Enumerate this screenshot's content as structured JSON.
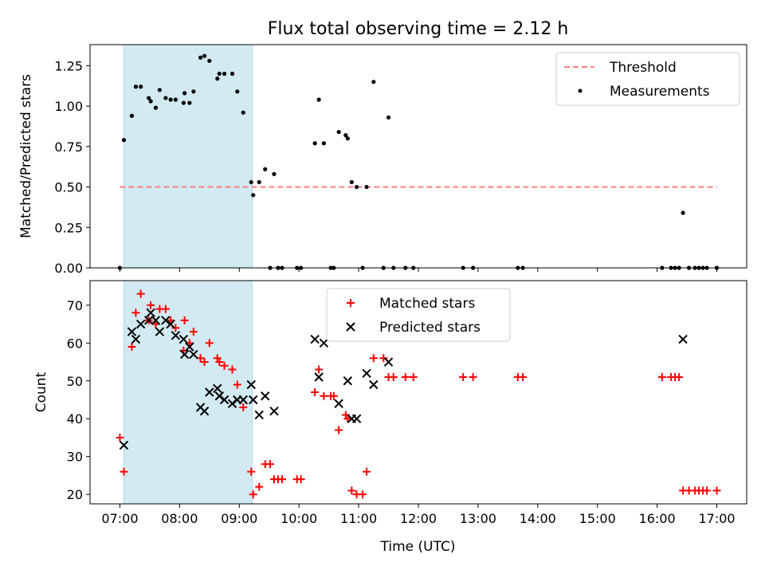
{
  "title": "Flux total observing time = 2.12 h",
  "colors": {
    "threshold": "#ff7f7f",
    "measurement": "#000000",
    "matched": "#ff0000",
    "predicted": "#000000",
    "shade": "#add8e6"
  },
  "chart_data": [
    {
      "type": "scatter",
      "ylabel": "Matched/Predicted stars",
      "xlim": [
        "06:30",
        "17:30"
      ],
      "ylim": [
        0,
        1.38
      ],
      "y_ticks": [
        0.0,
        0.25,
        0.5,
        0.75,
        1.0,
        1.25
      ],
      "y_tick_labels": [
        "0.00",
        "0.25",
        "0.50",
        "0.75",
        "1.00",
        "1.25"
      ],
      "legend_position": "upper right",
      "shaded_interval": [
        "07:04",
        "09:13"
      ],
      "threshold": {
        "name": "Threshold",
        "value": 0.5,
        "x_range": [
          "07:00",
          "17:00"
        ],
        "style": "dashed"
      },
      "series": [
        {
          "name": "Measurements",
          "marker": "dot",
          "points": [
            [
              "07:00",
              0.0
            ],
            [
              "07:04",
              0.79
            ],
            [
              "07:12",
              0.94
            ],
            [
              "07:16",
              1.12
            ],
            [
              "07:21",
              1.12
            ],
            [
              "07:29",
              1.05
            ],
            [
              "07:31",
              1.03
            ],
            [
              "07:36",
              0.99
            ],
            [
              "07:40",
              1.1
            ],
            [
              "07:46",
              1.05
            ],
            [
              "07:51",
              1.04
            ],
            [
              "07:56",
              1.04
            ],
            [
              "08:04",
              1.02
            ],
            [
              "08:05",
              1.08
            ],
            [
              "08:10",
              1.02
            ],
            [
              "08:14",
              1.09
            ],
            [
              "08:21",
              1.3
            ],
            [
              "08:25",
              1.31
            ],
            [
              "08:30",
              1.28
            ],
            [
              "08:38",
              1.17
            ],
            [
              "08:40",
              1.2
            ],
            [
              "08:45",
              1.2
            ],
            [
              "08:53",
              1.2
            ],
            [
              "08:58",
              1.09
            ],
            [
              "09:04",
              0.96
            ],
            [
              "09:12",
              0.53
            ],
            [
              "09:14",
              0.45
            ],
            [
              "09:20",
              0.53
            ],
            [
              "09:26",
              0.61
            ],
            [
              "09:31",
              0.0
            ],
            [
              "09:35",
              0.58
            ],
            [
              "09:39",
              0.0
            ],
            [
              "09:43",
              0.0
            ],
            [
              "09:58",
              0.0
            ],
            [
              "10:02",
              0.0
            ],
            [
              "10:16",
              0.77
            ],
            [
              "10:20",
              1.04
            ],
            [
              "10:25",
              0.77
            ],
            [
              "10:32",
              0.0
            ],
            [
              "10:35",
              0.0
            ],
            [
              "10:40",
              0.84
            ],
            [
              "10:47",
              0.82
            ],
            [
              "10:49",
              0.8
            ],
            [
              "10:53",
              0.53
            ],
            [
              "10:58",
              0.5
            ],
            [
              "11:04",
              0.0
            ],
            [
              "11:08",
              0.5
            ],
            [
              "11:15",
              1.15
            ],
            [
              "11:25",
              0.0
            ],
            [
              "11:30",
              0.93
            ],
            [
              "11:35",
              0.0
            ],
            [
              "11:47",
              0.0
            ],
            [
              "11:55",
              0.0
            ],
            [
              "12:45",
              0.0
            ],
            [
              "12:55",
              0.0
            ],
            [
              "13:40",
              0.0
            ],
            [
              "13:45",
              0.0
            ],
            [
              "16:05",
              0.0
            ],
            [
              "16:14",
              0.0
            ],
            [
              "16:18",
              0.0
            ],
            [
              "16:22",
              0.0
            ],
            [
              "16:26",
              0.34
            ],
            [
              "16:32",
              0.0
            ],
            [
              "16:38",
              0.0
            ],
            [
              "16:42",
              0.0
            ],
            [
              "16:46",
              0.0
            ],
            [
              "16:50",
              0.0
            ],
            [
              "17:00",
              0.0
            ]
          ]
        }
      ]
    },
    {
      "type": "scatter",
      "xlabel": "Time (UTC)",
      "ylabel": "Count",
      "xlim": [
        "06:30",
        "17:30"
      ],
      "ylim": [
        17.5,
        76.5
      ],
      "x_ticks": [
        "07:00",
        "08:00",
        "09:00",
        "10:00",
        "11:00",
        "12:00",
        "13:00",
        "14:00",
        "15:00",
        "16:00",
        "17:00"
      ],
      "y_ticks": [
        20,
        30,
        40,
        50,
        60,
        70
      ],
      "legend_position": "upper center",
      "shaded_interval": [
        "07:04",
        "09:13"
      ],
      "series": [
        {
          "name": "Matched stars",
          "marker": "plus",
          "points": [
            [
              "07:00",
              35
            ],
            [
              "07:04",
              26
            ],
            [
              "07:12",
              59
            ],
            [
              "07:16",
              68
            ],
            [
              "07:21",
              73
            ],
            [
              "07:29",
              66
            ],
            [
              "07:31",
              70
            ],
            [
              "07:36",
              65
            ],
            [
              "07:40",
              69
            ],
            [
              "07:46",
              69
            ],
            [
              "07:51",
              66
            ],
            [
              "07:56",
              64
            ],
            [
              "08:04",
              58
            ],
            [
              "08:05",
              66
            ],
            [
              "08:10",
              60
            ],
            [
              "08:14",
              63
            ],
            [
              "08:21",
              56
            ],
            [
              "08:25",
              55
            ],
            [
              "08:30",
              60
            ],
            [
              "08:38",
              56
            ],
            [
              "08:40",
              55
            ],
            [
              "08:45",
              54
            ],
            [
              "08:53",
              53
            ],
            [
              "08:58",
              49
            ],
            [
              "09:04",
              43
            ],
            [
              "09:12",
              26
            ],
            [
              "09:14",
              20
            ],
            [
              "09:20",
              22
            ],
            [
              "09:26",
              28
            ],
            [
              "09:31",
              28
            ],
            [
              "09:35",
              24
            ],
            [
              "09:39",
              24
            ],
            [
              "09:43",
              24
            ],
            [
              "09:58",
              24
            ],
            [
              "10:02",
              24
            ],
            [
              "10:16",
              47
            ],
            [
              "10:20",
              53
            ],
            [
              "10:25",
              46
            ],
            [
              "10:32",
              46
            ],
            [
              "10:35",
              46
            ],
            [
              "10:40",
              37
            ],
            [
              "10:47",
              41
            ],
            [
              "10:49",
              40
            ],
            [
              "10:53",
              21
            ],
            [
              "10:58",
              20
            ],
            [
              "11:04",
              20
            ],
            [
              "11:08",
              26
            ],
            [
              "11:15",
              56
            ],
            [
              "11:25",
              56
            ],
            [
              "11:30",
              51
            ],
            [
              "11:35",
              51
            ],
            [
              "11:47",
              51
            ],
            [
              "11:55",
              51
            ],
            [
              "12:45",
              51
            ],
            [
              "12:55",
              51
            ],
            [
              "13:40",
              51
            ],
            [
              "13:45",
              51
            ],
            [
              "16:05",
              51
            ],
            [
              "16:14",
              51
            ],
            [
              "16:18",
              51
            ],
            [
              "16:22",
              51
            ],
            [
              "16:26",
              21
            ],
            [
              "16:32",
              21
            ],
            [
              "16:38",
              21
            ],
            [
              "16:42",
              21
            ],
            [
              "16:46",
              21
            ],
            [
              "16:50",
              21
            ],
            [
              "17:00",
              21
            ]
          ]
        },
        {
          "name": "Predicted stars",
          "marker": "x",
          "points": [
            [
              "07:04",
              33
            ],
            [
              "07:12",
              63
            ],
            [
              "07:16",
              61
            ],
            [
              "07:21",
              65
            ],
            [
              "07:29",
              66
            ],
            [
              "07:31",
              68
            ],
            [
              "07:36",
              66
            ],
            [
              "07:40",
              63
            ],
            [
              "07:46",
              66
            ],
            [
              "07:51",
              65
            ],
            [
              "07:56",
              62
            ],
            [
              "08:04",
              61
            ],
            [
              "08:05",
              57
            ],
            [
              "08:10",
              59
            ],
            [
              "08:14",
              57
            ],
            [
              "08:21",
              43
            ],
            [
              "08:25",
              42
            ],
            [
              "08:30",
              47
            ],
            [
              "08:38",
              48
            ],
            [
              "08:40",
              46
            ],
            [
              "08:45",
              45
            ],
            [
              "08:53",
              44
            ],
            [
              "08:58",
              45
            ],
            [
              "09:04",
              45
            ],
            [
              "09:12",
              49
            ],
            [
              "09:14",
              45
            ],
            [
              "09:20",
              41
            ],
            [
              "09:26",
              46
            ],
            [
              "09:35",
              42
            ],
            [
              "10:16",
              61
            ],
            [
              "10:20",
              51
            ],
            [
              "10:25",
              60
            ],
            [
              "10:40",
              44
            ],
            [
              "10:49",
              50
            ],
            [
              "10:53",
              40
            ],
            [
              "10:58",
              40
            ],
            [
              "11:08",
              52
            ],
            [
              "11:15",
              49
            ],
            [
              "11:30",
              55
            ],
            [
              "16:26",
              61
            ]
          ]
        }
      ]
    }
  ]
}
